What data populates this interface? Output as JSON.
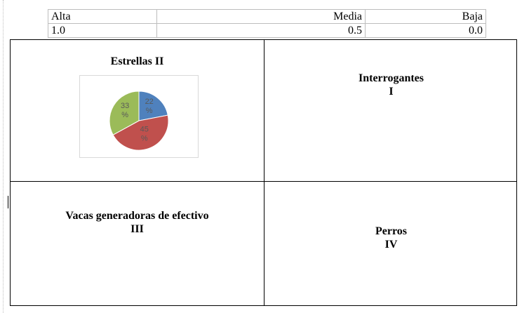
{
  "scale": {
    "labels": [
      "Alta",
      "Media",
      "Baja"
    ],
    "values": [
      "1.0",
      "0.5",
      "0.0"
    ]
  },
  "quadrants": {
    "q1": {
      "title": "Estrellas II"
    },
    "q2": {
      "title": "Interrogantes",
      "numeral": "I"
    },
    "q3": {
      "title": "Vacas generadoras de efectivo",
      "numeral": "III"
    },
    "q4": {
      "title": "Perros",
      "numeral": "IV"
    }
  },
  "chart_data": {
    "type": "pie",
    "values": [
      22,
      45,
      33
    ],
    "labels": [
      "22 %",
      "45 %",
      "33 %"
    ],
    "colors": [
      "#4f81bd",
      "#c0504d",
      "#9bbb59"
    ]
  }
}
